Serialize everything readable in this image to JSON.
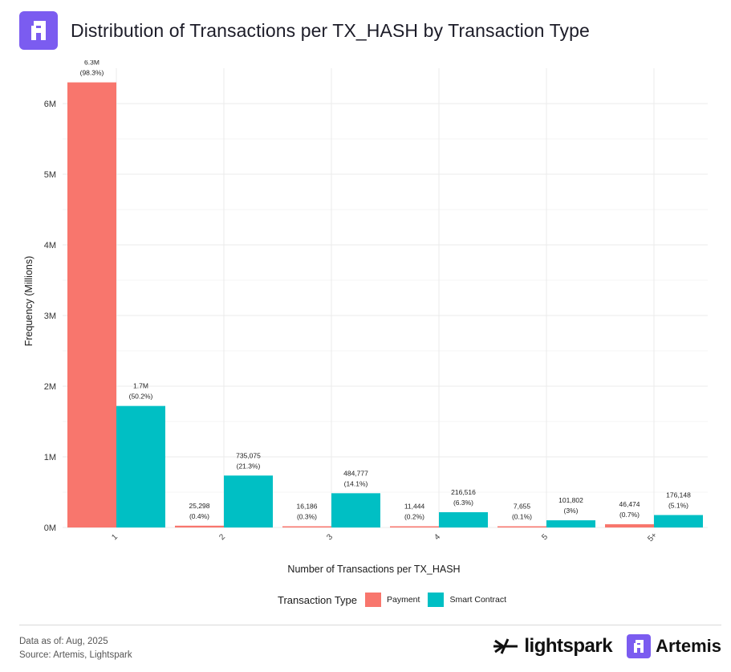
{
  "header": {
    "title": "Distribution of Transactions per TX_HASH by Transaction Type"
  },
  "colors": {
    "payment": "#f8766d",
    "smart_contract": "#00bfc4",
    "brand": "#7b5cf0"
  },
  "chart_data": {
    "type": "bar",
    "title": "Distribution of Transactions per TX_HASH by Transaction Type",
    "xlabel": "Number of Transactions per TX_HASH",
    "ylabel": "Frequency (Millions)",
    "categories": [
      "1",
      "2",
      "3",
      "4",
      "5",
      "5+"
    ],
    "ylim": [
      0,
      6.5
    ],
    "yticks": [
      0,
      1,
      2,
      3,
      4,
      5,
      6
    ],
    "ytick_labels": [
      "0M",
      "1M",
      "2M",
      "3M",
      "4M",
      "5M",
      "6M"
    ],
    "series": [
      {
        "name": "Payment",
        "values": [
          6.3,
          0.025298,
          0.016186,
          0.011444,
          0.007655,
          0.046474
        ],
        "labels": [
          "6.3M",
          "25,298",
          "16,186",
          "11,444",
          "7,655",
          "46,474"
        ],
        "pct_labels": [
          "(98.3%)",
          "(0.4%)",
          "(0.3%)",
          "(0.2%)",
          "(0.1%)",
          "(0.7%)"
        ]
      },
      {
        "name": "Smart Contract",
        "values": [
          1.72,
          0.735075,
          0.484777,
          0.216516,
          0.101802,
          0.176148
        ],
        "labels": [
          "1.7M",
          "735,075",
          "484,777",
          "216,516",
          "101,802",
          "176,148"
        ],
        "pct_labels": [
          "(50.2%)",
          "(21.3%)",
          "(14.1%)",
          "(6.3%)",
          "(3%)",
          "(5.1%)"
        ]
      }
    ],
    "legend": {
      "title": "Transaction Type",
      "position": "bottom"
    },
    "grid": true
  },
  "footer": {
    "data_as_of": "Data as of: Aug, 2025",
    "source": "Source: Artemis, Lightspark",
    "brand_lightspark": "lightspark",
    "brand_artemis": "Artemis"
  }
}
